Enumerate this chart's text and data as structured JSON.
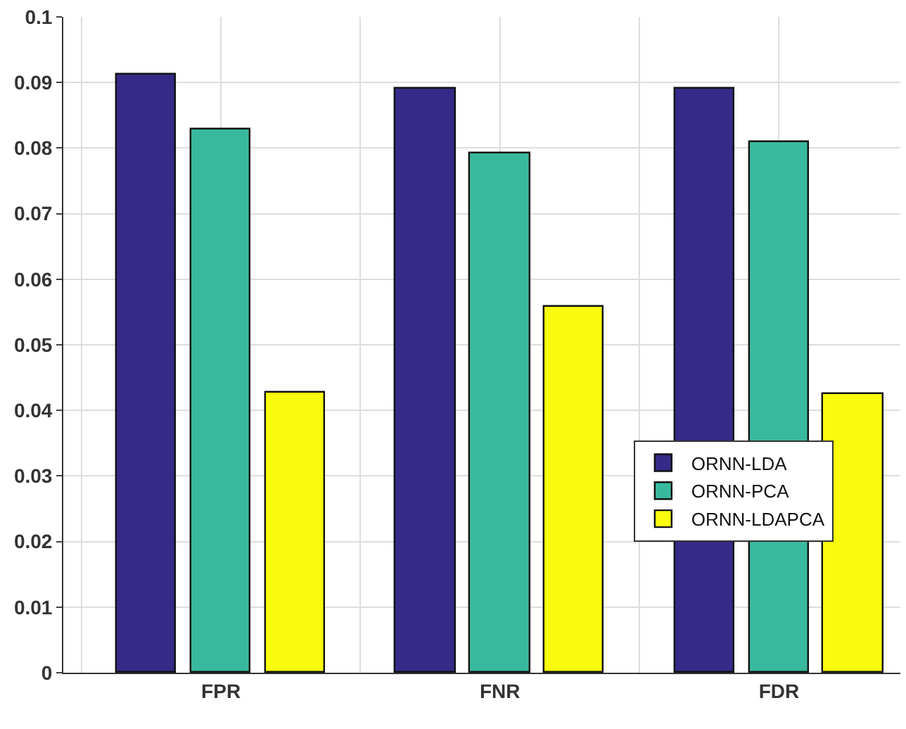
{
  "chart_data": {
    "type": "bar",
    "categories": [
      "FPR",
      "FNR",
      "FDR"
    ],
    "series": [
      {
        "name": "ORNN-LDA",
        "color": "#352a87",
        "values": [
          0.0911,
          0.089,
          0.089
        ]
      },
      {
        "name": "ORNN-PCA",
        "color": "#38b99e",
        "values": [
          0.0829,
          0.0791,
          0.0808
        ]
      },
      {
        "name": "ORNN-LDAPCA",
        "color": "#f9fb0e",
        "values": [
          0.0428,
          0.0558,
          0.0425
        ]
      }
    ],
    "ylim": [
      0,
      0.1
    ],
    "yticks": [
      0,
      0.01,
      0.02,
      0.03,
      0.04,
      0.05,
      0.06,
      0.07,
      0.08,
      0.09,
      0.1
    ],
    "grid": true,
    "legend": "bottom right"
  }
}
